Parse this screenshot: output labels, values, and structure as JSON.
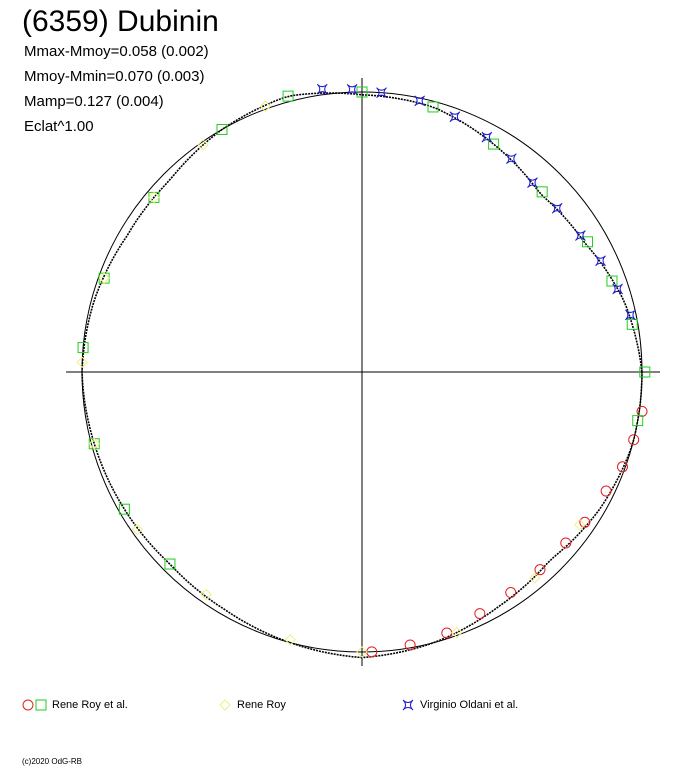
{
  "header": {
    "title": "(6359) Dubinin",
    "stats": [
      "Mmax-Mmoy=0.058 (0.002)",
      "Mmoy-Mmin=0.070 (0.003)",
      "Mamp=0.127 (0.004)",
      "Eclat^1.00"
    ]
  },
  "footer": {
    "copyright": "(c)2020 OdG-RB"
  },
  "colors": {
    "red": "#e02020",
    "green": "#22cc22",
    "yellow": "#f0f080",
    "blue": "#1a1acc",
    "axis": "#000000"
  },
  "chart_data": {
    "type": "scatter",
    "projection": "polar",
    "title": "(6359) Dubinin",
    "grid": false,
    "reference_circle_radius": 1.0,
    "legend": [
      {
        "label": "Rene Roy et al.",
        "markers": [
          "red-circle",
          "green-square"
        ]
      },
      {
        "label": "Rene Roy",
        "markers": [
          "yellow-diamond"
        ]
      },
      {
        "label": "Virginio Oldani et al.",
        "markers": [
          "blue-star"
        ]
      }
    ],
    "fit_curve": {
      "angle_deg": [
        0,
        15,
        30,
        45,
        60,
        75,
        90,
        105,
        120,
        135,
        150,
        165,
        180,
        195,
        210,
        225,
        240,
        255,
        270,
        285,
        300,
        315,
        330,
        345
      ],
      "radius": [
        1.0,
        0.97,
        0.92,
        0.9,
        0.94,
        0.98,
        0.99,
        1.02,
        1.0,
        0.97,
        0.97,
        0.99,
        1.0,
        0.99,
        0.98,
        0.97,
        0.98,
        1.0,
        1.02,
        1.0,
        0.97,
        0.95,
        0.98,
        1.0
      ]
    },
    "series": [
      {
        "name": "Rene Roy et al.",
        "marker": "circle",
        "color": "red",
        "angle_deg_range": [
          270,
          354
        ],
        "angle_deg": [
          272,
          280,
          288,
          296,
          304,
          312,
          320,
          326,
          334,
          340,
          346,
          352
        ],
        "radius": [
          1.0,
          0.99,
          0.98,
          0.96,
          0.95,
          0.95,
          0.95,
          0.96,
          0.97,
          0.99,
          1.0,
          1.01
        ]
      },
      {
        "name": "Rene Roy et al.",
        "marker": "square",
        "color": "green",
        "angle_deg": [
          0,
          10,
          20,
          30,
          45,
          60,
          75,
          90,
          105,
          120,
          140,
          160,
          175,
          195,
          210,
          225,
          350
        ],
        "radius": [
          1.01,
          0.98,
          0.95,
          0.93,
          0.91,
          0.94,
          0.98,
          1.0,
          1.02,
          1.0,
          0.97,
          0.98,
          1.0,
          0.99,
          0.98,
          0.97,
          1.0
        ]
      },
      {
        "name": "Rene Roy",
        "marker": "diamond",
        "color": "yellow",
        "angle_deg": [
          110,
          125,
          140,
          160,
          178,
          195,
          215,
          235,
          255,
          270,
          290,
          310,
          325
        ],
        "radius": [
          1.01,
          0.99,
          0.97,
          0.98,
          1.0,
          0.99,
          0.98,
          0.97,
          0.99,
          1.0,
          0.99,
          0.96,
          0.95
        ]
      },
      {
        "name": "Virginio Oldani et al.",
        "marker": "star",
        "color": "blue",
        "angle_deg": [
          12,
          18,
          25,
          32,
          40,
          48,
          55,
          62,
          70,
          78,
          86,
          92,
          98
        ],
        "radius": [
          0.98,
          0.96,
          0.94,
          0.92,
          0.91,
          0.91,
          0.93,
          0.95,
          0.97,
          0.99,
          1.0,
          1.01,
          1.02
        ]
      }
    ]
  }
}
